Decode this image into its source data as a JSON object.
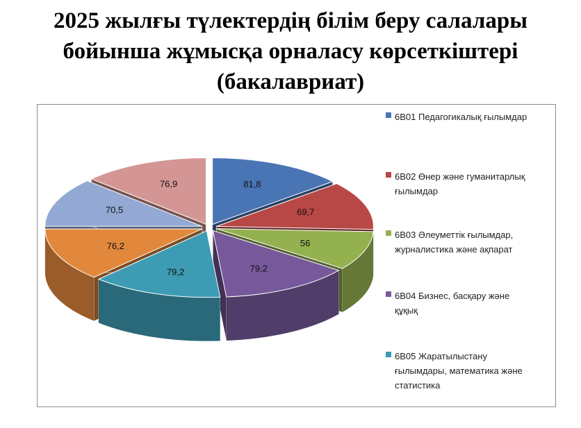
{
  "title": {
    "line1": "2025 жылғы түлектердің білім беру салалары",
    "line2": "бойынша жұмысқа орналасу көрсеткіштері",
    "line3": "(бакалавриат)"
  },
  "chart_data": {
    "type": "pie",
    "style": "3d-exploded",
    "title": "2025 жылғы түлектердің білім беру салалары бойынша жұмысқа орналасу көрсеткіштері (бакалавриат)",
    "legend_position": "right",
    "categories": [
      "6В01 Педагогикалық ғылымдар",
      "6В02 Өнер және гуманитарлық ғылымдар",
      "6В03 Әлеуметтік ғылымдар, журналистика және ақпарат",
      "6В04 Бизнес, басқару және құқық",
      "6В05 Жаратылыстану ғылымдары, математика және статистика",
      "",
      "",
      ""
    ],
    "values": [
      81.8,
      69.7,
      56,
      79.2,
      79.2,
      76.2,
      70.5,
      76.9
    ],
    "labels": [
      "81,8",
      "69,7",
      "56",
      "79,2",
      "79,2",
      "76,2",
      "70,5",
      "76,9"
    ],
    "colors": [
      "#4a75b5",
      "#b84846",
      "#94b150",
      "#77599b",
      "#3d9bb4",
      "#e2883c",
      "#93a9d4",
      "#d49694"
    ]
  },
  "legend": {
    "items": [
      {
        "lines": [
          "6В01 Педагогикалық ғылымдар"
        ],
        "color": "#4a75b5"
      },
      {
        "lines": [
          "6В02  Өнер және гуманитарлық",
          "ғылымдар"
        ],
        "color": "#b84846"
      },
      {
        "lines": [
          "6В03  Әлеуметтік ғылымдар,",
          "журналистика және ақпарат"
        ],
        "color": "#94b150"
      },
      {
        "lines": [
          "6В04  Бизнес, басқару және",
          "құқық"
        ],
        "color": "#77599b"
      },
      {
        "lines": [
          "6В05  Жаратылыстану",
          "ғылымдары, математика және",
          "статистика"
        ],
        "color": "#3d9bb4"
      }
    ]
  }
}
